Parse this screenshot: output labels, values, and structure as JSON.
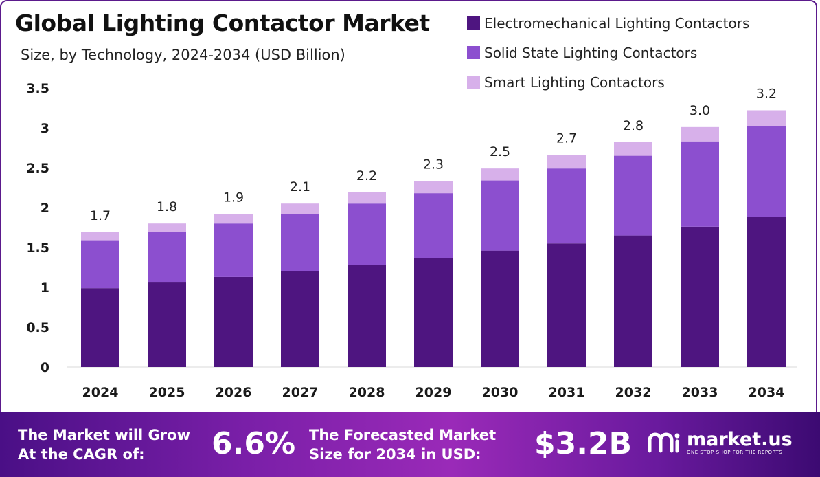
{
  "header": {
    "title": "Global Lighting Contactor Market",
    "subtitle": "Size, by Technology, 2024-2034 (USD Billion)"
  },
  "colors": {
    "electromechanical": "#4e1580",
    "solid_state": "#8c4fcf",
    "smart": "#d7b0ea",
    "footer_start": "#4a0f86",
    "footer_end": "#3c0a72"
  },
  "chart_data": {
    "type": "bar",
    "stacked": true,
    "categories": [
      "2024",
      "2025",
      "2026",
      "2027",
      "2028",
      "2029",
      "2030",
      "2031",
      "2032",
      "2033",
      "2034"
    ],
    "series": [
      {
        "name": "Electromechanical Lighting Contactors",
        "values": [
          0.99,
          1.06,
          1.13,
          1.2,
          1.28,
          1.37,
          1.46,
          1.55,
          1.65,
          1.76,
          1.88
        ]
      },
      {
        "name": "Solid State Lighting Contactors",
        "values": [
          0.6,
          0.63,
          0.67,
          0.72,
          0.77,
          0.81,
          0.88,
          0.94,
          1.0,
          1.07,
          1.14
        ]
      },
      {
        "name": "Smart Lighting Contactors",
        "values": [
          0.1,
          0.11,
          0.12,
          0.13,
          0.14,
          0.15,
          0.15,
          0.17,
          0.17,
          0.18,
          0.2
        ]
      }
    ],
    "totals": [
      "1.7",
      "1.8",
      "1.9",
      "2.1",
      "2.2",
      "2.3",
      "2.5",
      "2.7",
      "2.8",
      "3.0",
      "3.2"
    ],
    "y_ticks": [
      "0",
      "0.5",
      "1",
      "1.5",
      "2",
      "2.5",
      "3",
      "3.5"
    ],
    "ylim": [
      0,
      3.5
    ],
    "grid": false,
    "legend_position": "top-right"
  },
  "footer": {
    "cagr_label_line1": "The Market will Grow",
    "cagr_label_line2": "At the CAGR of:",
    "cagr_value": "6.6%",
    "forecast_label_line1": "The Forecasted Market",
    "forecast_label_line2": "Size for 2034 in USD:",
    "forecast_value": "$3.2B",
    "logo_name": "market.us",
    "logo_tagline": "ONE STOP SHOP FOR THE REPORTS"
  }
}
